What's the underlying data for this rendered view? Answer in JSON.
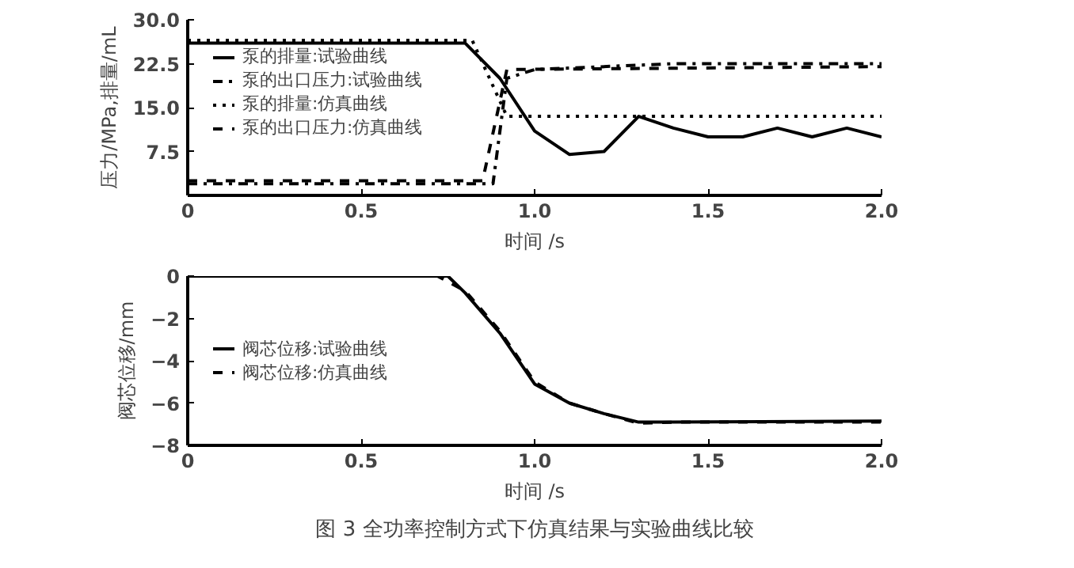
{
  "chart_data": [
    {
      "type": "line",
      "xlabel": "时间 /s",
      "ylabel": "压力/MPa,排量/mL",
      "xlim": [
        0,
        2
      ],
      "ylim": [
        0,
        30
      ],
      "xticks": [
        {
          "value": 0,
          "label": "0"
        },
        {
          "value": 0.5,
          "label": "0.5"
        },
        {
          "value": 1,
          "label": "1.0"
        },
        {
          "value": 1.5,
          "label": "1.5"
        },
        {
          "value": 2,
          "label": "2.0"
        }
      ],
      "yticks": [
        {
          "value": 7.5,
          "label": "7.5"
        },
        {
          "value": 15,
          "label": "15.0"
        },
        {
          "value": 22.5,
          "label": "22.5"
        },
        {
          "value": 30,
          "label": "30.0"
        }
      ],
      "legend": "top left",
      "grid": false,
      "series": [
        {
          "name": "泵的排量:试验曲线",
          "color": "#000000",
          "line_style": "solid",
          "x": [
            0,
            0.8,
            0.9,
            1.0,
            1.1,
            1.2,
            1.3,
            1.4,
            1.5,
            1.6,
            1.7,
            1.8,
            1.9,
            2.0
          ],
          "values": [
            26,
            26,
            20,
            11,
            7,
            7.5,
            13.5,
            11.5,
            10,
            10,
            11.5,
            10,
            11.5,
            10
          ]
        },
        {
          "name": "泵的出口压力:试验曲线",
          "color": "#000000",
          "line_style": "dashdot",
          "x": [
            0,
            0.88,
            0.92,
            1.0,
            1.4,
            2.0
          ],
          "values": [
            2,
            2,
            20,
            21.5,
            22.5,
            22.5
          ]
        },
        {
          "name": "泵的排量:仿真曲线",
          "color": "#000000",
          "line_style": "dotted",
          "x": [
            0,
            0.82,
            0.92,
            2.0
          ],
          "values": [
            26.5,
            26.5,
            13.5,
            13.5
          ]
        },
        {
          "name": "泵的出口压力:仿真曲线",
          "color": "#000000",
          "line_style": "dashed",
          "x": [
            0,
            0.85,
            0.92,
            2.0
          ],
          "values": [
            2.5,
            2.5,
            21.5,
            22
          ]
        }
      ]
    },
    {
      "type": "line",
      "xlabel": "时间 /s",
      "ylabel": "阀芯位移/mm",
      "xlim": [
        0,
        2
      ],
      "ylim": [
        -8,
        0
      ],
      "xticks": [
        {
          "value": 0,
          "label": "0"
        },
        0.5,
        {
          "value": 1,
          "label": "1.0"
        },
        1.5,
        {
          "value": 2,
          "label": "2.0"
        }
      ],
      "yticks": [
        -8,
        -6,
        -4,
        -2,
        0
      ],
      "legend": "left",
      "grid": false,
      "annotations": [
        "图 3 全功率控制方式下仿真结果与实验曲线比较"
      ],
      "series": [
        {
          "name": "阀芯位移:试验曲线",
          "color": "#000000",
          "line_style": "solid",
          "x": [
            0,
            0.75,
            0.8,
            0.9,
            1.0,
            1.1,
            1.2,
            1.3,
            1.4,
            2.0
          ],
          "values": [
            0,
            0,
            -0.8,
            -2.7,
            -5.1,
            -6.0,
            -6.5,
            -6.9,
            -6.9,
            -6.85
          ]
        },
        {
          "name": "阀芯位移:仿真曲线",
          "color": "#000000",
          "line_style": "dashed",
          "x": [
            0,
            0.72,
            0.8,
            0.9,
            1.0,
            1.1,
            1.2,
            1.3,
            1.4,
            2.0
          ],
          "values": [
            0,
            0,
            -0.7,
            -2.6,
            -5.0,
            -6.0,
            -6.5,
            -6.95,
            -6.9,
            -6.9
          ]
        }
      ]
    }
  ]
}
